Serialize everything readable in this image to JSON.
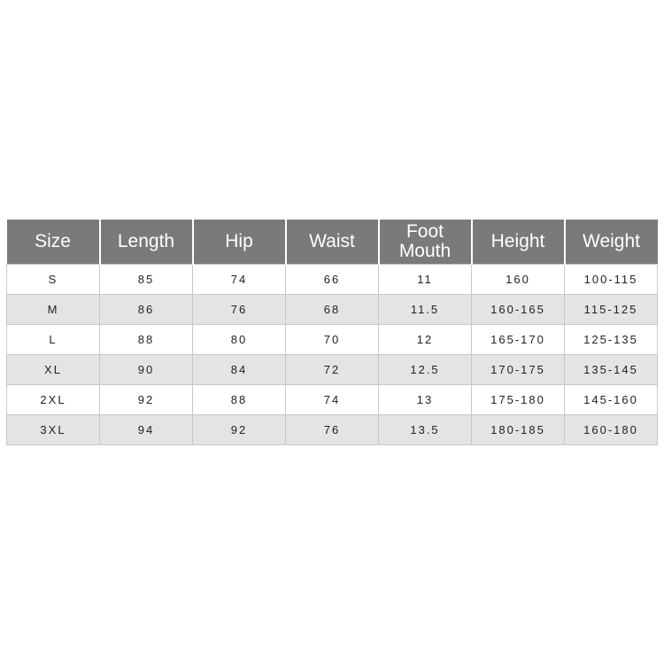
{
  "table": {
    "header": [
      "Size",
      "Length",
      "Hip",
      "Waist",
      "Foot Mouth",
      "Height",
      "Weight"
    ],
    "rows": [
      [
        "S",
        "85",
        "74",
        "66",
        "11",
        "160",
        "100-115"
      ],
      [
        "M",
        "86",
        "76",
        "68",
        "11.5",
        "160-165",
        "115-125"
      ],
      [
        "L",
        "88",
        "80",
        "70",
        "12",
        "165-170",
        "125-135"
      ],
      [
        "XL",
        "90",
        "84",
        "72",
        "12.5",
        "170-175",
        "135-145"
      ],
      [
        "2XL",
        "92",
        "88",
        "74",
        "13",
        "175-180",
        "145-160"
      ],
      [
        "3XL",
        "94",
        "92",
        "76",
        "13.5",
        "180-185",
        "160-180"
      ]
    ]
  }
}
